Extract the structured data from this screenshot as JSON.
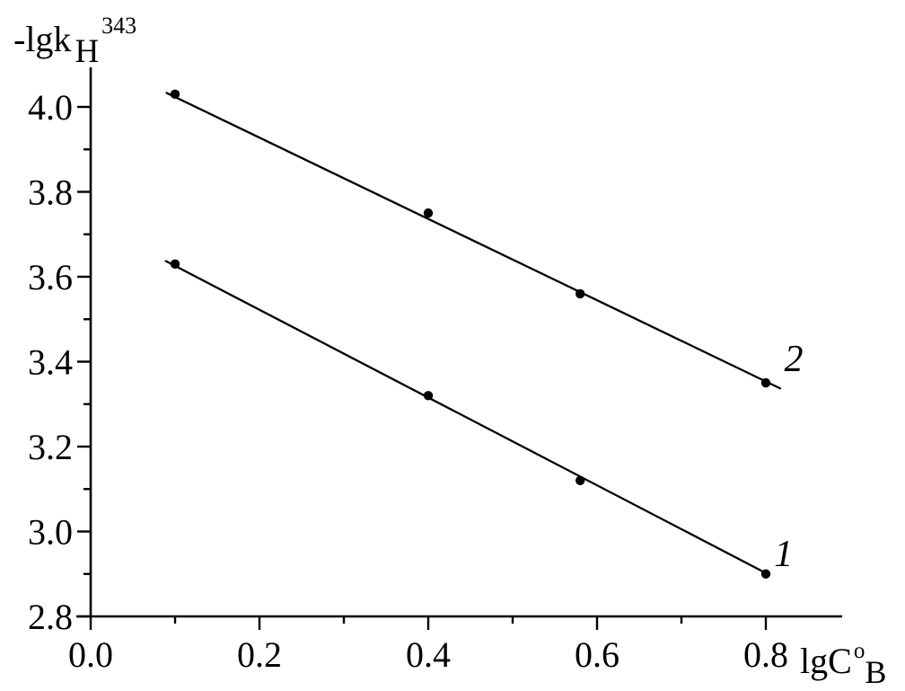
{
  "chart_data": {
    "type": "scatter",
    "title": "",
    "background_color": "#ffffff",
    "foreground_color": "#000000",
    "grid": false,
    "legend": "inline-labels-at-line-ends",
    "y_axis": {
      "label": {
        "prefix": "-lgk",
        "sub": "H",
        "sup": "343"
      },
      "range": [
        2.8,
        4.093
      ],
      "major_ticks": [
        2.8,
        3.0,
        3.2,
        3.4,
        3.6,
        3.8,
        4.0
      ],
      "major_tick_labels": [
        "2.8",
        "3.0",
        "3.2",
        "3.4",
        "3.6",
        "3.8",
        "4.0"
      ],
      "minor_ticks": [
        2.9,
        3.1,
        3.3,
        3.5,
        3.7,
        3.9
      ]
    },
    "x_axis": {
      "label": {
        "prefix": "lg",
        "base": "C",
        "sup": "o",
        "sub": "B"
      },
      "range": [
        0.0,
        0.8905
      ],
      "major_ticks": [
        0.0,
        0.2,
        0.4,
        0.6,
        0.8
      ],
      "major_tick_labels": [
        "0.0",
        "0.2",
        "0.4",
        "0.6",
        "0.8"
      ],
      "minor_ticks": [
        0.1,
        0.3,
        0.5,
        0.7
      ]
    },
    "series": [
      {
        "name": "1",
        "label": "1",
        "label_pos": [
          0.821,
          2.918
        ],
        "marker": "filled-circle",
        "points": [
          {
            "x": 0.1,
            "y": 3.63
          },
          {
            "x": 0.4,
            "y": 3.32
          },
          {
            "x": 0.58,
            "y": 3.12
          },
          {
            "x": 0.8,
            "y": 2.9
          }
        ],
        "fit_line": {
          "x1": 0.089,
          "y1": 3.637,
          "x2": 0.803,
          "y2": 2.899
        }
      },
      {
        "name": "2",
        "label": "2",
        "label_pos": [
          0.833,
          3.378
        ],
        "marker": "filled-circle",
        "points": [
          {
            "x": 0.1,
            "y": 4.03
          },
          {
            "x": 0.4,
            "y": 3.75
          },
          {
            "x": 0.58,
            "y": 3.56
          },
          {
            "x": 0.8,
            "y": 3.35
          }
        ],
        "fit_line": {
          "x1": 0.09,
          "y1": 4.033,
          "x2": 0.817,
          "y2": 3.337
        }
      }
    ]
  }
}
